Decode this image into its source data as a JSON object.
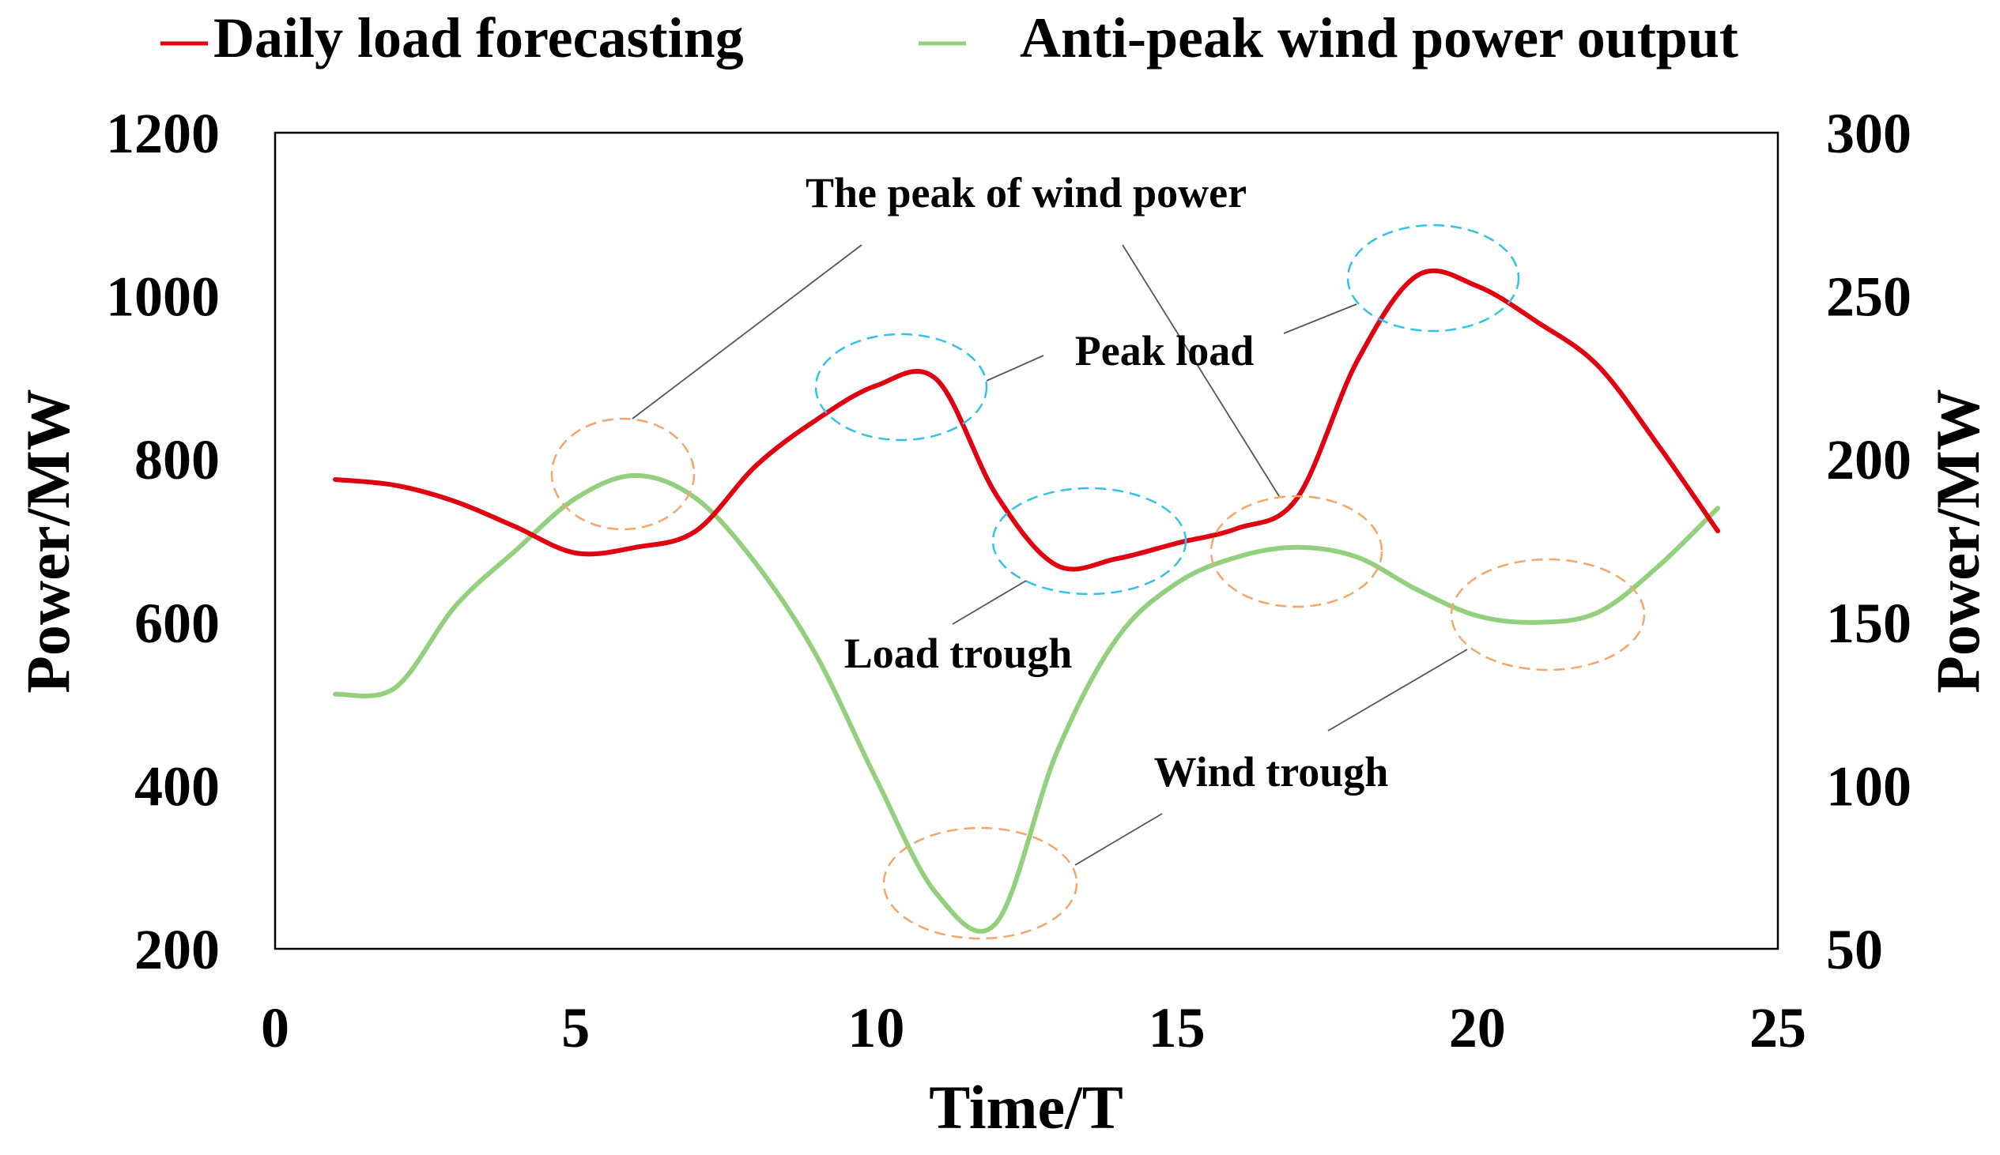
{
  "chart_data": {
    "type": "line",
    "title": "",
    "xlabel": "Time/T",
    "ylabel_left": "Power/MW",
    "ylabel_right": "Power/MW",
    "xlim": [
      0,
      25
    ],
    "ylim_left": [
      200,
      1200
    ],
    "ylim_right": [
      50,
      300
    ],
    "x_ticks": [
      "0",
      "5",
      "10",
      "15",
      "20",
      "25"
    ],
    "y_ticks_left": [
      "200",
      "400",
      "600",
      "800",
      "1000",
      "1200"
    ],
    "y_ticks_right": [
      "50",
      "100",
      "150",
      "200",
      "250",
      "300"
    ],
    "legend": [
      "Daily load forecasting",
      "Anti-peak wind power output"
    ],
    "legend_position": "top",
    "grid": false,
    "colors": {
      "load": "#e0000f",
      "wind": "#92d07e",
      "load_ellipse": "#33c0ea",
      "wind_ellipse": "#f6a56a"
    },
    "series": [
      {
        "name": "Daily load forecasting",
        "axis": "left",
        "x": [
          1,
          2,
          3,
          4,
          5,
          6,
          7,
          8,
          9,
          10,
          11,
          12,
          13,
          14,
          15,
          16,
          17,
          18,
          19,
          20,
          21,
          22,
          23,
          24
        ],
        "values": [
          775,
          768,
          748,
          717,
          685,
          692,
          712,
          792,
          848,
          890,
          898,
          756,
          670,
          678,
          697,
          715,
          752,
          920,
          1025,
          1012,
          968,
          915,
          818,
          712
        ]
      },
      {
        "name": "Anti-peak wind power output",
        "axis": "right",
        "x": [
          1,
          2,
          3,
          4,
          5,
          6,
          7,
          8,
          9,
          10,
          11,
          12,
          13,
          14,
          15,
          16,
          17,
          18,
          19,
          20,
          21,
          22,
          23,
          24
        ],
        "values": [
          128,
          130,
          155,
          172,
          188,
          195,
          188,
          168,
          140,
          102,
          67,
          58,
          110,
          145,
          162,
          170,
          173,
          170,
          160,
          152,
          150,
          153,
          167,
          185
        ]
      }
    ],
    "annotations": [
      {
        "text": "The peak of wind power",
        "target": "wind",
        "points": [
          6,
          17
        ]
      },
      {
        "text": "Peak load",
        "target": "load",
        "points": [
          10.5,
          19.3
        ]
      },
      {
        "text": "Load trough",
        "target": "load",
        "points": [
          13.5
        ]
      },
      {
        "text": "Wind trough",
        "target": "wind",
        "points": [
          11.6,
          21
        ]
      }
    ]
  }
}
